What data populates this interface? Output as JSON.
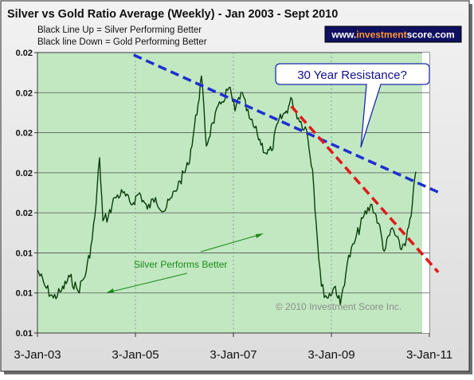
{
  "chart_data": {
    "type": "line",
    "title": "Silver vs Gold Ratio Average (Weekly) - Jan 2003 - Sept 2010",
    "subtitle_lines": [
      "Black Line Up = Silver Performing Better",
      "Black line Down = Gold Performing Better"
    ],
    "website": "www.investmentscore.com",
    "website_parts": [
      "www.",
      "investment",
      "score",
      ".com"
    ],
    "copyright": "© 2010 Investment Score Inc.",
    "y_tick_labels": [
      "0.02",
      "0.02",
      "0.02",
      "0.02",
      "0.02",
      "0.01",
      "0.01"
    ],
    "x_tick_labels": [
      "3-Jan-03",
      "3-Jan-05",
      "3-Jan-07",
      "3-Jan-09",
      "3-Jan-11"
    ],
    "xlim": [
      "2003-01-03",
      "2011-01-03"
    ],
    "ylim": [
      0.01,
      0.022
    ],
    "grid": true,
    "series": [
      {
        "color": "#0a3d0a",
        "points": [
          [
            "2003-01-03",
            0.0127
          ],
          [
            "2003-03-01",
            0.012
          ],
          [
            "2003-05-01",
            0.0115
          ],
          [
            "2003-07-01",
            0.0118
          ],
          [
            "2003-09-01",
            0.0124
          ],
          [
            "2003-11-01",
            0.0118
          ],
          [
            "2004-01-01",
            0.0126
          ],
          [
            "2004-02-15",
            0.014
          ],
          [
            "2004-03-15",
            0.0155
          ],
          [
            "2004-04-10",
            0.0175
          ],
          [
            "2004-05-05",
            0.0148
          ],
          [
            "2004-06-15",
            0.015
          ],
          [
            "2004-08-01",
            0.0158
          ],
          [
            "2004-10-01",
            0.016
          ],
          [
            "2004-12-01",
            0.0155
          ],
          [
            "2005-02-01",
            0.016
          ],
          [
            "2005-04-01",
            0.0153
          ],
          [
            "2005-06-01",
            0.0158
          ],
          [
            "2005-08-01",
            0.0152
          ],
          [
            "2005-10-01",
            0.0158
          ],
          [
            "2005-12-01",
            0.0165
          ],
          [
            "2006-02-01",
            0.0172
          ],
          [
            "2006-04-15",
            0.0198
          ],
          [
            "2006-05-10",
            0.021
          ],
          [
            "2006-06-15",
            0.018
          ],
          [
            "2006-08-01",
            0.019
          ],
          [
            "2006-10-01",
            0.0198
          ],
          [
            "2006-12-01",
            0.0205
          ],
          [
            "2007-01-15",
            0.0195
          ],
          [
            "2007-03-01",
            0.0203
          ],
          [
            "2007-05-01",
            0.0192
          ],
          [
            "2007-07-01",
            0.0185
          ],
          [
            "2007-09-01",
            0.0177
          ],
          [
            "2007-10-15",
            0.0178
          ],
          [
            "2007-12-01",
            0.019
          ],
          [
            "2008-02-01",
            0.0195
          ],
          [
            "2008-03-15",
            0.02
          ],
          [
            "2008-05-01",
            0.0192
          ],
          [
            "2008-07-01",
            0.0187
          ],
          [
            "2008-08-15",
            0.017
          ],
          [
            "2008-09-20",
            0.014
          ],
          [
            "2008-10-20",
            0.012
          ],
          [
            "2008-12-01",
            0.0115
          ],
          [
            "2009-02-01",
            0.012
          ],
          [
            "2009-03-10",
            0.0112
          ],
          [
            "2009-05-01",
            0.013
          ],
          [
            "2009-07-01",
            0.014
          ],
          [
            "2009-09-01",
            0.015
          ],
          [
            "2009-11-01",
            0.0155
          ],
          [
            "2009-12-20",
            0.0147
          ],
          [
            "2010-02-01",
            0.0135
          ],
          [
            "2010-04-01",
            0.0145
          ],
          [
            "2010-06-01",
            0.0136
          ],
          [
            "2010-07-15",
            0.014
          ],
          [
            "2010-08-20",
            0.015
          ],
          [
            "2010-09-24",
            0.0169
          ]
        ]
      }
    ],
    "trend_lines": [
      {
        "color": "#1f2fd0",
        "from": [
          "2004-12-20",
          0.0219
        ],
        "to": [
          "2011-03-20",
          0.016
        ]
      },
      {
        "color": "#e0191b",
        "from": [
          "2008-03-10",
          0.0197
        ],
        "to": [
          "2011-03-10",
          0.0126
        ]
      }
    ],
    "annotations": [
      {
        "text": "30 Year Resistance?",
        "at": [
          "2009-12-10",
          0.0175
        ]
      },
      {
        "text": "Silver Performs Better"
      }
    ]
  }
}
